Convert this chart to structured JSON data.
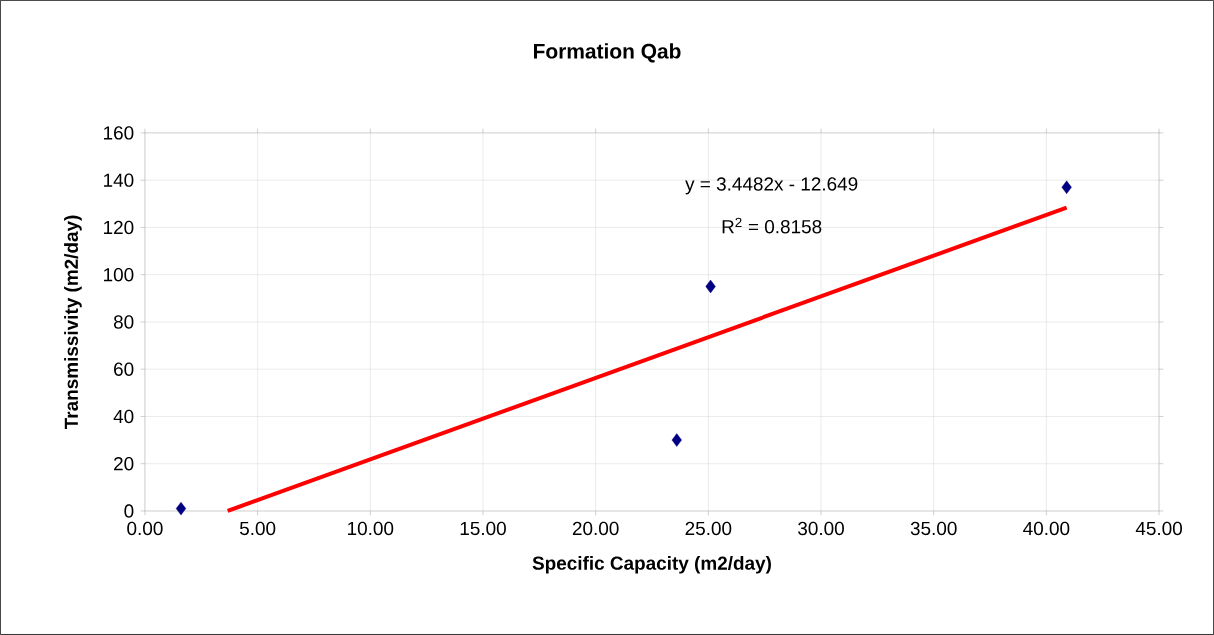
{
  "chart_data": {
    "type": "scatter",
    "title": "Formation Qab",
    "xlabel": "Specific Capacity (m2/day)",
    "ylabel": "Transmissivity (m2/day)",
    "annotations": [
      "y = 3.4482x - 12.649",
      "R$^{2}$ = 0.8158"
    ],
    "series": [
      {
        "type": "scatter",
        "color": "#000080",
        "marker": "diamond",
        "x": [
          1.6,
          23.6,
          25.1,
          40.9
        ],
        "values": [
          1,
          30,
          95,
          137
        ]
      },
      {
        "type": "line",
        "color": "#ff0000",
        "marker": "none",
        "x": [
          3.67,
          40.9
        ],
        "values": [
          0,
          128.4
        ]
      }
    ],
    "xlim": [
      0,
      45
    ],
    "ylim": [
      0,
      160
    ],
    "xticks": [
      {
        "value": 0,
        "label": "0.00"
      },
      {
        "value": 5,
        "label": "5.00"
      },
      {
        "value": 10,
        "label": "10.00"
      },
      {
        "value": 15,
        "label": "15.00"
      },
      {
        "value": 20,
        "label": "20.00"
      },
      {
        "value": 25,
        "label": "25.00"
      },
      {
        "value": 30,
        "label": "30.00"
      },
      {
        "value": 35,
        "label": "35.00"
      },
      {
        "value": 40,
        "label": "40.00"
      },
      {
        "value": 45,
        "label": "45.00"
      }
    ],
    "yticks": [
      0,
      20,
      40,
      60,
      80,
      100,
      120,
      140,
      160
    ],
    "grid": true
  }
}
